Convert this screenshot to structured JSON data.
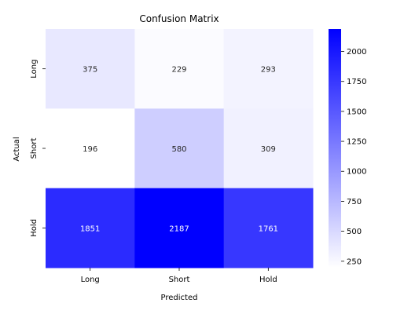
{
  "chart_data": {
    "type": "heatmap",
    "title": "Confusion Matrix",
    "xlabel": "Predicted",
    "ylabel": "Actual",
    "x_categories": [
      "Long",
      "Short",
      "Hold"
    ],
    "y_categories": [
      "Long",
      "Short",
      "Hold"
    ],
    "values": [
      [
        375,
        229,
        293
      ],
      [
        196,
        580,
        309
      ],
      [
        1851,
        2187,
        1761
      ]
    ],
    "colorbar": {
      "min": 196,
      "max": 2187,
      "ticks": [
        250,
        500,
        750,
        1000,
        1250,
        1500,
        1750,
        2000
      ],
      "color_low": "#ffffff",
      "color_high": "#0000ff"
    }
  }
}
